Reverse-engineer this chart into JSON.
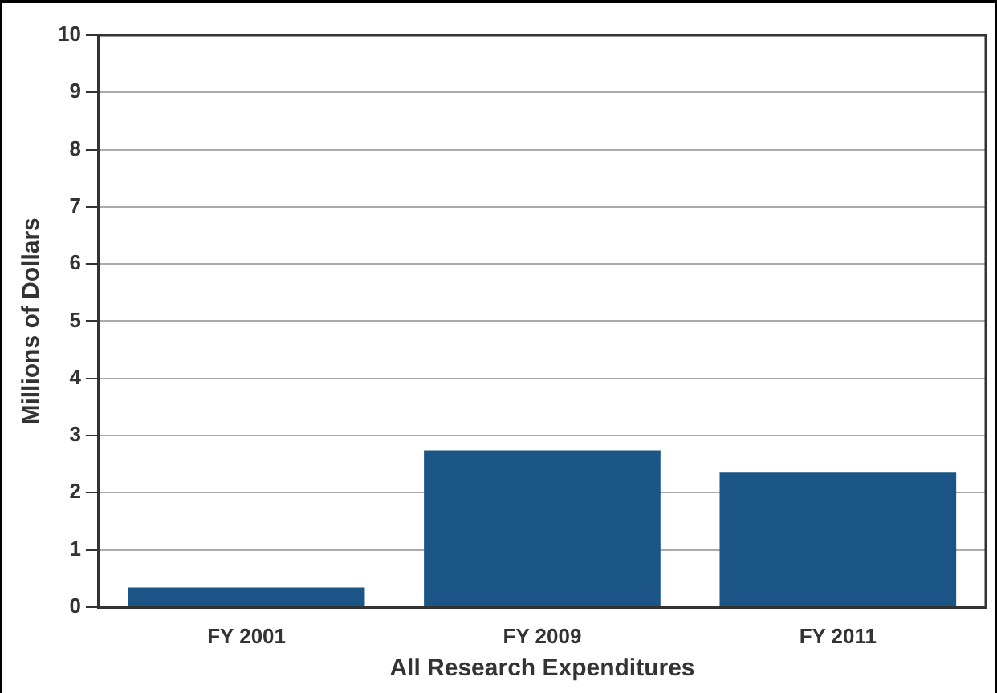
{
  "chart_data": {
    "type": "bar",
    "xlabel": "All Research Expenditures",
    "ylabel": "Millions of Dollars",
    "categories": [
      "FY 2001",
      "FY 2009",
      "FY 2011"
    ],
    "values": [
      0.34,
      2.74,
      2.35
    ],
    "color": "#1a5585",
    "ylim": [
      0,
      10
    ],
    "yticks": [
      0,
      1,
      2,
      3,
      4,
      5,
      6,
      7,
      8,
      9,
      10
    ],
    "grid": "y",
    "legend": false
  }
}
